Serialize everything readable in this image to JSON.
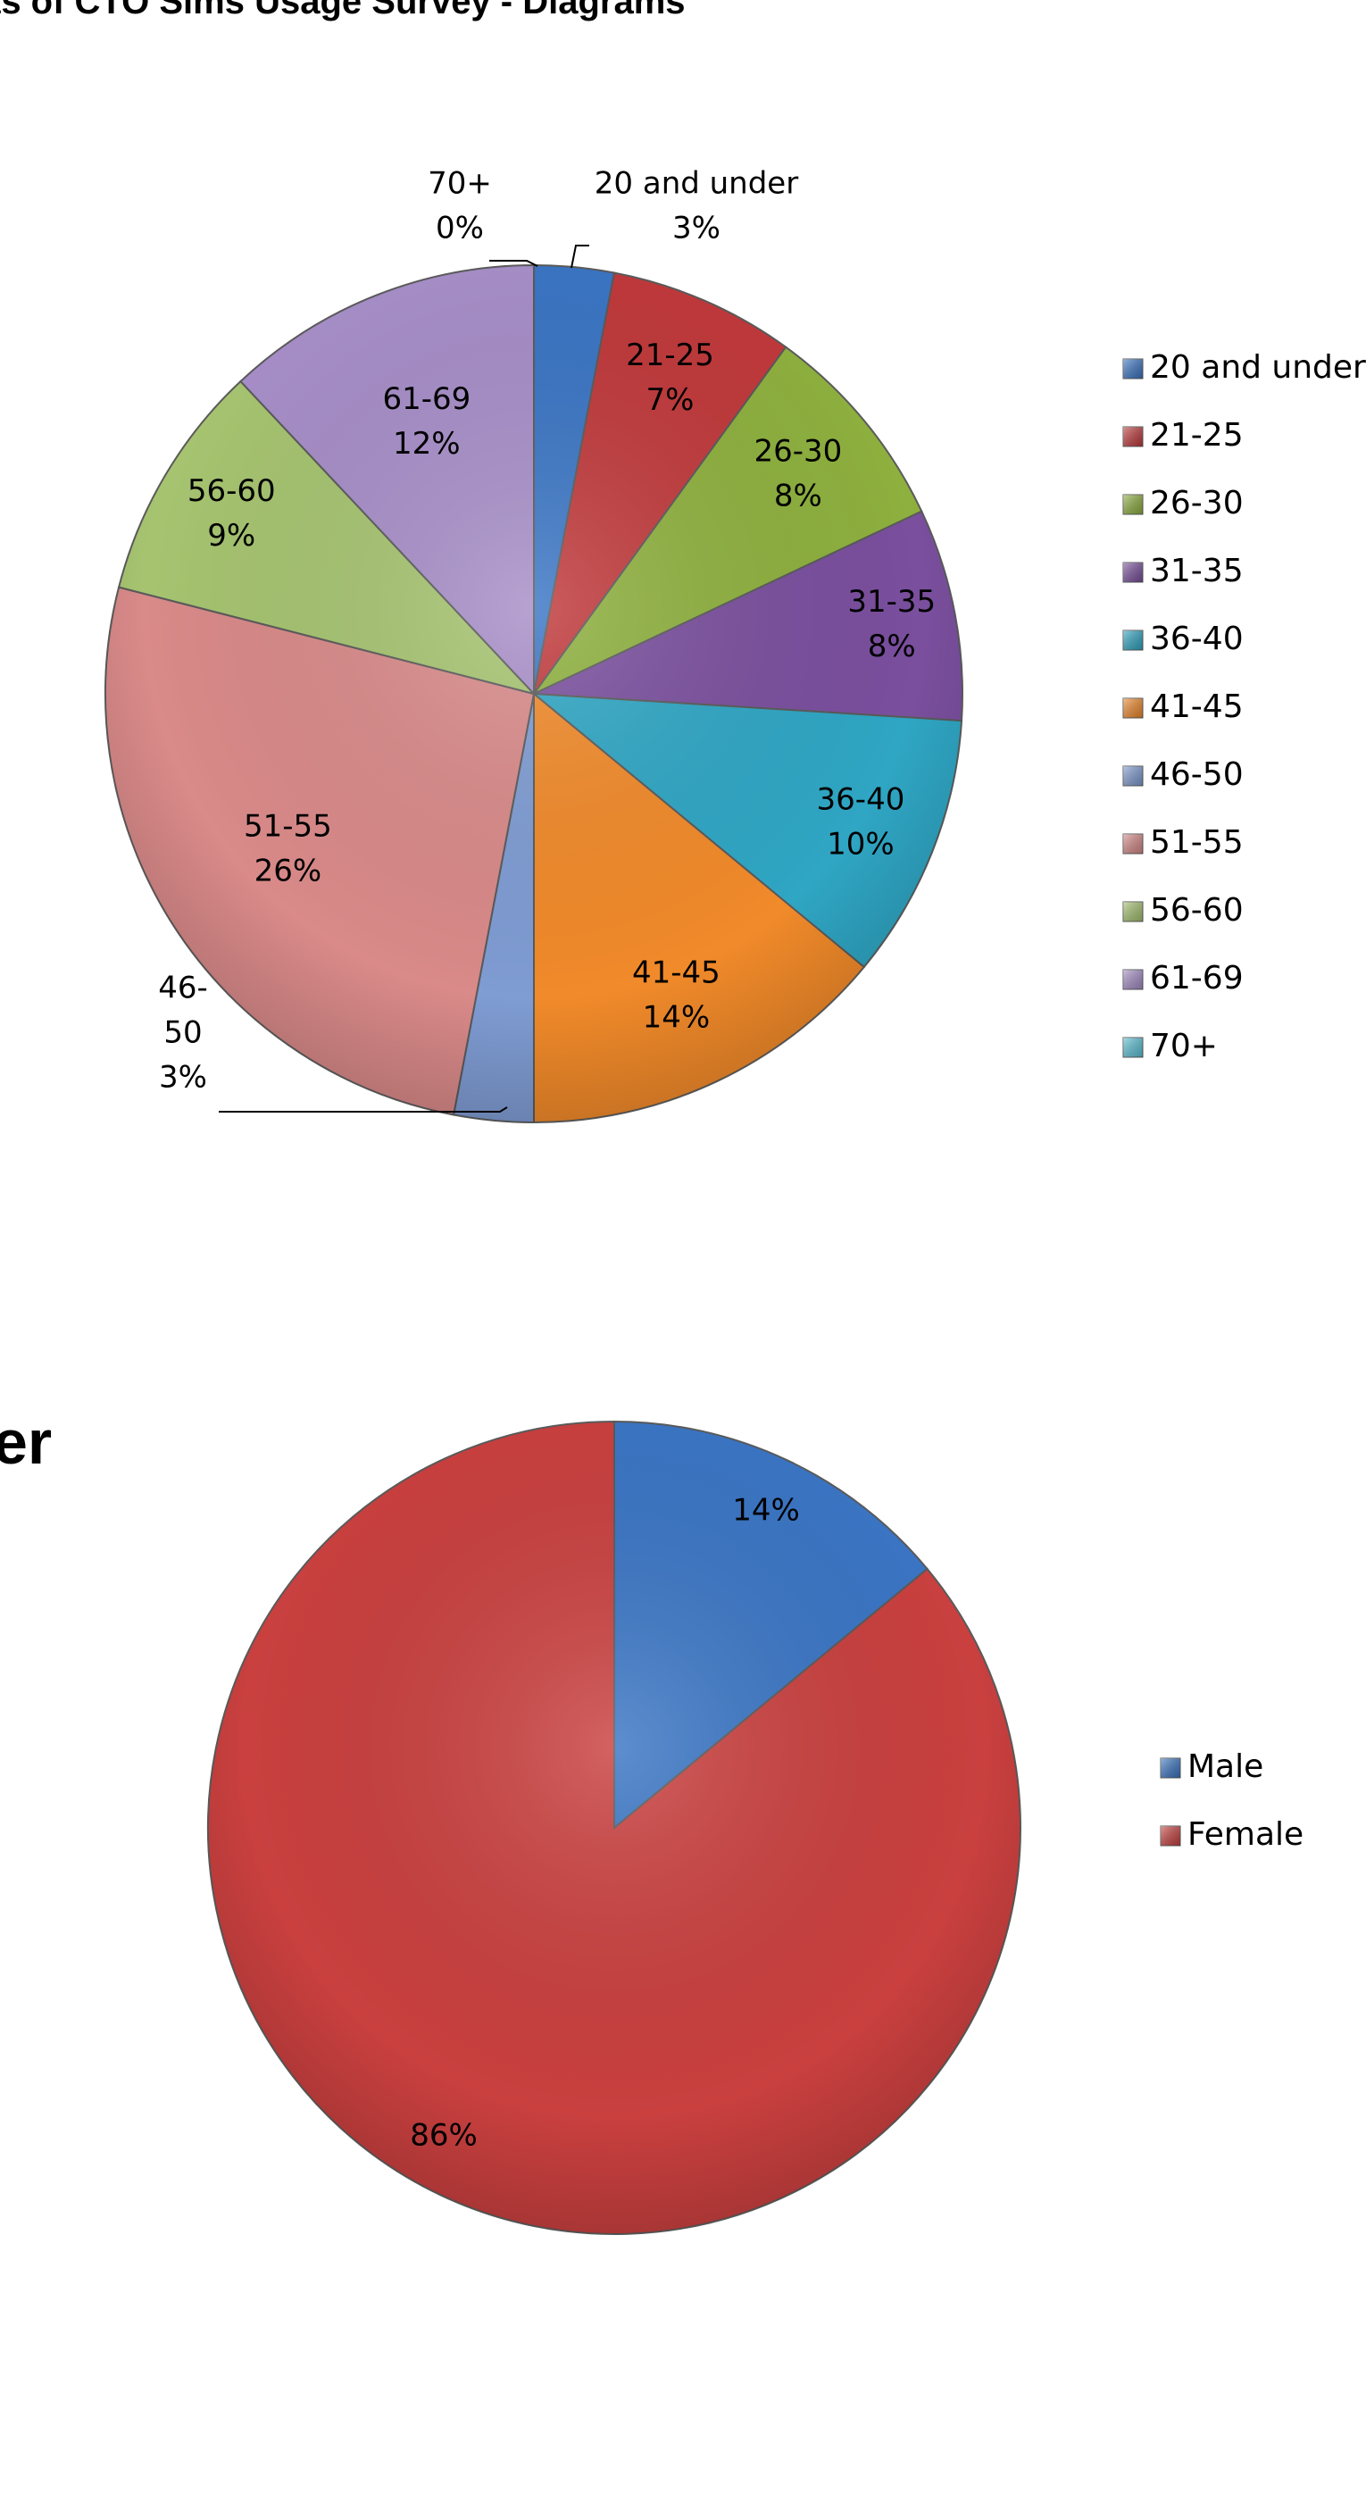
{
  "page": {
    "title": "ts of CTO Sims Usage Survey - Diagrams",
    "section_heading": "er"
  },
  "chart_data": [
    {
      "type": "pie",
      "title": "",
      "categories": [
        "20 and under",
        "21-25",
        "26-30",
        "31-35",
        "36-40",
        "41-45",
        "46-50",
        "51-55",
        "56-60",
        "61-69",
        "70+"
      ],
      "values": [
        3,
        7,
        8,
        8,
        10,
        14,
        3,
        26,
        9,
        12,
        0
      ],
      "data_labels": [
        {
          "category": "20 and under",
          "percent": "3%"
        },
        {
          "category": "21-25",
          "percent": "7%"
        },
        {
          "category": "26-30",
          "percent": "8%"
        },
        {
          "category": "31-35",
          "percent": "8%"
        },
        {
          "category": "36-40",
          "percent": "10%"
        },
        {
          "category": "41-45",
          "percent": "14%"
        },
        {
          "category": "46-",
          "category_line2": "50",
          "percent": "3%"
        },
        {
          "category": "51-55",
          "percent": "26%"
        },
        {
          "category": "56-60",
          "percent": "9%"
        },
        {
          "category": "61-69",
          "percent": "12%"
        },
        {
          "category": "70+",
          "percent": "0%"
        }
      ],
      "colors": [
        "#3A75C4",
        "#C0393B",
        "#8EB03E",
        "#7A4F9E",
        "#2FA6C4",
        "#F18A2A",
        "#7F9CD3",
        "#D98A89",
        "#A6C470",
        "#A78EC8",
        "#5BC3D8"
      ],
      "legend": {
        "position": "right",
        "entries": [
          "20 and under",
          "21-25",
          "26-30",
          "31-35",
          "36-40",
          "41-45",
          "46-50",
          "51-55",
          "56-60",
          "61-69",
          "70+"
        ]
      }
    },
    {
      "type": "pie",
      "title": "",
      "categories": [
        "Male",
        "Female"
      ],
      "values": [
        14,
        86
      ],
      "data_labels": [
        "14%",
        "86%"
      ],
      "colors": [
        "#3A75C4",
        "#C9403F"
      ],
      "legend": {
        "position": "right",
        "entries": [
          "Male",
          "Female"
        ]
      }
    }
  ]
}
